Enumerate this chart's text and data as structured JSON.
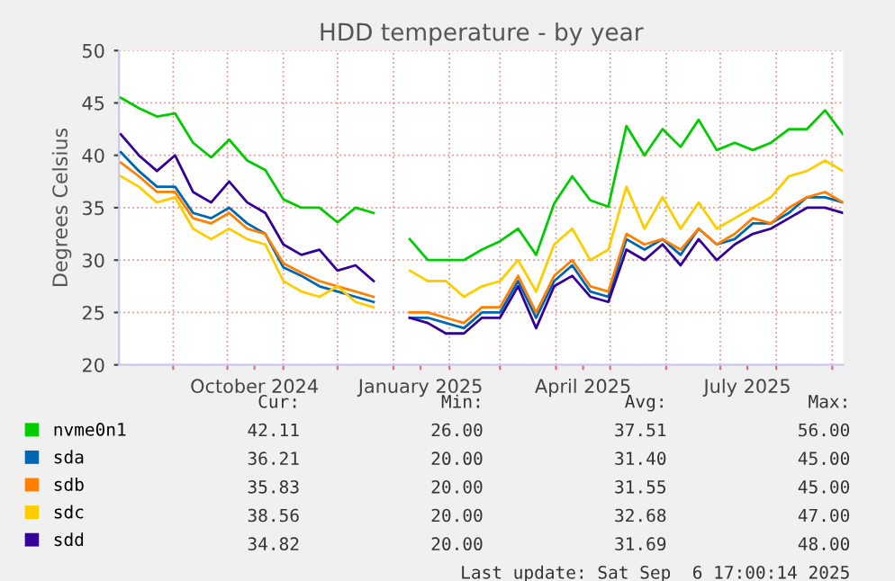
{
  "chart_data": {
    "type": "line",
    "title": "HDD temperature - by year",
    "ylabel": "Degrees Celsius",
    "x": [
      "2024-08-03",
      "2024-08-13",
      "2024-08-23",
      "2024-09-02",
      "2024-09-12",
      "2024-09-22",
      "2024-10-02",
      "2024-10-12",
      "2024-10-22",
      "2024-11-01",
      "2024-11-11",
      "2024-11-21",
      "2024-12-01",
      "2024-12-11",
      "2024-12-21",
      "2024-12-31",
      "2025-01-10",
      "2025-01-20",
      "2025-01-30",
      "2025-02-09",
      "2025-02-19",
      "2025-03-01",
      "2025-03-11",
      "2025-03-21",
      "2025-03-31",
      "2025-04-10",
      "2025-04-20",
      "2025-04-30",
      "2025-05-10",
      "2025-05-20",
      "2025-05-30",
      "2025-06-09",
      "2025-06-19",
      "2025-06-29",
      "2025-07-09",
      "2025-07-19",
      "2025-07-29",
      "2025-08-08",
      "2025-08-18",
      "2025-08-28",
      "2025-09-07"
    ],
    "series": [
      {
        "name": "nvme0n1",
        "color": "#00cc00",
        "values": [
          45.5,
          44.5,
          43.7,
          44,
          41.2,
          39.8,
          41.5,
          39.5,
          38.6,
          35.8,
          35,
          35,
          33.6,
          35,
          34.5,
          null,
          32,
          30,
          30,
          30,
          31,
          31.8,
          33,
          30.5,
          35.4,
          38,
          35.7,
          35.1,
          42.8,
          40,
          42.5,
          40.8,
          43.4,
          40.5,
          41.2,
          40.5,
          41.2,
          42.5,
          42.5,
          44.3,
          42
        ]
      },
      {
        "name": "sda",
        "color": "#0066b3",
        "values": [
          40.3,
          38.5,
          37,
          37,
          34.5,
          34,
          35,
          33.5,
          32.5,
          29.3,
          28.5,
          27.5,
          27,
          26.5,
          26,
          null,
          24.5,
          24.5,
          24,
          23.5,
          25,
          25,
          28,
          24.5,
          28,
          29.5,
          27,
          26.5,
          32,
          31,
          32,
          30.5,
          33,
          31.5,
          32,
          33.5,
          33.5,
          34.5,
          36,
          36,
          35.5
        ]
      },
      {
        "name": "sdb",
        "color": "#ff8000",
        "values": [
          39.3,
          38,
          36.5,
          36.5,
          34,
          33.5,
          34.5,
          33,
          32.5,
          29.7,
          28.8,
          28,
          27.5,
          27,
          26.5,
          null,
          25,
          25,
          24.5,
          24,
          25.5,
          25.5,
          28.5,
          25,
          28.5,
          30,
          27.5,
          27,
          32.5,
          31.5,
          32,
          31,
          33,
          31.5,
          32.5,
          34,
          33.5,
          35,
          36,
          36.5,
          35.5
        ]
      },
      {
        "name": "sdc",
        "color": "#ffcc00",
        "values": [
          38,
          37,
          35.5,
          36,
          33,
          32,
          33,
          32,
          31.5,
          28,
          27,
          26.5,
          27.5,
          26,
          25.5,
          null,
          29,
          28,
          28,
          26.5,
          27.5,
          28,
          30,
          27,
          31.5,
          33,
          30,
          31,
          37,
          33,
          36,
          33,
          35.5,
          33,
          34,
          35,
          36,
          38,
          38.5,
          39.5,
          38.5
        ]
      },
      {
        "name": "sdd",
        "color": "#330099",
        "values": [
          42,
          40,
          38.5,
          40,
          36.5,
          35.5,
          37.5,
          35.5,
          34.5,
          31.5,
          30.5,
          31,
          29,
          29.5,
          28,
          null,
          24.5,
          24,
          23,
          23,
          24.5,
          24.5,
          27.5,
          23.5,
          27.5,
          28.5,
          26.5,
          26,
          31,
          30,
          31.5,
          29.5,
          32,
          30,
          31.5,
          32.5,
          33,
          34,
          35,
          35,
          34.5
        ]
      }
    ],
    "xlim": [
      "2024-08-02",
      "2025-09-07"
    ],
    "xticks": [
      {
        "value": "2024-09-01",
        "label": null
      },
      {
        "value": "2024-10-01",
        "label": null
      },
      {
        "value": "2024-10-16",
        "label": "October 2024"
      },
      {
        "value": "2024-11-01",
        "label": null
      },
      {
        "value": "2024-12-01",
        "label": null
      },
      {
        "value": "2025-01-01",
        "label": null
      },
      {
        "value": "2025-01-16",
        "label": "January 2025"
      },
      {
        "value": "2025-02-01",
        "label": null
      },
      {
        "value": "2025-03-01",
        "label": null
      },
      {
        "value": "2025-04-01",
        "label": null
      },
      {
        "value": "2025-04-16",
        "label": "April 2025"
      },
      {
        "value": "2025-05-01",
        "label": null
      },
      {
        "value": "2025-06-01",
        "label": null
      },
      {
        "value": "2025-07-01",
        "label": null
      },
      {
        "value": "2025-07-16",
        "label": "July 2025"
      },
      {
        "value": "2025-08-01",
        "label": null
      },
      {
        "value": "2025-09-01",
        "label": null
      }
    ],
    "ylim": [
      20,
      50
    ],
    "yticks": [
      20,
      25,
      30,
      35,
      40,
      45,
      50
    ],
    "grid": true,
    "legend": "bottom",
    "marker": "none",
    "line_style": "solid",
    "annotations": [
      "Cur:",
      "Min:",
      "Avg:",
      "Max:",
      "42.11",
      "26.00",
      "37.51",
      "56.00",
      "36.21",
      "20.00",
      "31.40",
      "45.00",
      "35.83",
      "20.00",
      "31.55",
      "45.00",
      "38.56",
      "20.00",
      "32.68",
      "47.00",
      "34.82",
      "20.00",
      "31.69",
      "48.00",
      "Last update: Sat Sep  6 17:00:14 2025"
    ]
  }
}
